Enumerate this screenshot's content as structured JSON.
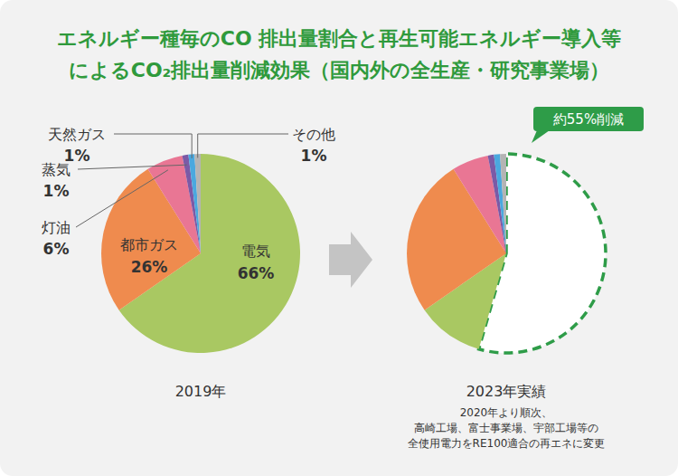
{
  "title": [
    "エネルギー種毎のCO 排出量割合と再生可能エネルギー導入等",
    "によるCO₂排出量削減効果（国内外の全生産・研究事業場）"
  ],
  "chart_data": [
    {
      "type": "pie",
      "title": "2019年",
      "categories": [
        "電気",
        "都市ガス",
        "灯油",
        "蒸気",
        "天然ガス",
        "その他"
      ],
      "values": [
        66,
        26,
        6,
        1,
        1,
        1
      ],
      "value_labels": [
        "66%",
        "26%",
        "6%",
        "1%",
        "1%",
        "1%"
      ],
      "colors": [
        "#a9c862",
        "#ef8b4e",
        "#e97694",
        "#7b5aa6",
        "#4aa8df",
        "#b4b4b4"
      ],
      "data_labels": true
    },
    {
      "type": "pie",
      "title": "2023年実績",
      "annotations": [
        "2020年より順次、",
        "高崎工場、富士事業場、宇部工場等の",
        "全使用電力をRE100適合の再エネに変更"
      ],
      "categories": [
        null,
        null,
        null,
        null,
        null,
        null,
        null
      ],
      "values": [
        55,
        11,
        26,
        6,
        1,
        1,
        1
      ],
      "value_labels": [
        "約55%削減",
        null,
        null,
        null,
        null,
        null,
        null
      ],
      "colors": [
        "none",
        "#a9c862",
        "#ef8b4e",
        "#e97694",
        "#7b5aa6",
        "#4aa8df",
        "#b4b4b4"
      ],
      "data_labels": true
    }
  ]
}
